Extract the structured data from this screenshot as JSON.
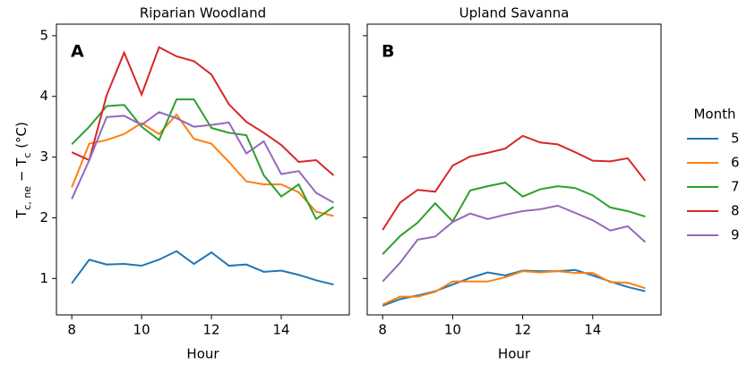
{
  "chart_data": [
    {
      "type": "line",
      "title": "Riparian Woodland",
      "annotation": "A",
      "xlabel": "Hour",
      "ylabel": [
        "T",
        "c, ne",
        " − T",
        "c",
        " (°C)"
      ],
      "legend_title": "Month",
      "legend": "outside-right",
      "x": [
        8,
        8.5,
        9,
        9.5,
        10,
        10.5,
        11,
        11.5,
        12,
        12.5,
        13,
        13.5,
        14,
        14.5,
        15,
        15.5
      ],
      "xlim": [
        7.56,
        15.95
      ],
      "xticks": [
        8,
        10,
        12,
        14
      ],
      "ylim": [
        0.4,
        5.19
      ],
      "yticks": [
        1,
        2,
        3,
        4,
        5
      ],
      "series": [
        {
          "name": "5",
          "color": "#1f77b4",
          "values": [
            0.92,
            1.31,
            1.23,
            1.24,
            1.21,
            1.31,
            1.45,
            1.24,
            1.43,
            1.21,
            1.23,
            1.11,
            1.13,
            1.06,
            0.97,
            0.9
          ]
        },
        {
          "name": "6",
          "color": "#ff7f0e",
          "values": [
            2.5,
            3.22,
            3.28,
            3.38,
            3.56,
            3.38,
            3.7,
            3.3,
            3.22,
            2.92,
            2.6,
            2.55,
            2.55,
            2.42,
            2.1,
            2.03
          ]
        },
        {
          "name": "7",
          "color": "#2ca02c",
          "values": [
            3.21,
            3.5,
            3.84,
            3.86,
            3.5,
            3.28,
            3.95,
            3.95,
            3.48,
            3.4,
            3.36,
            2.7,
            2.35,
            2.55,
            1.98,
            2.18
          ]
        },
        {
          "name": "8",
          "color": "#d62728",
          "values": [
            3.08,
            2.95,
            4.02,
            4.72,
            4.03,
            4.81,
            4.66,
            4.58,
            4.36,
            3.87,
            3.58,
            3.4,
            3.2,
            2.92,
            2.95,
            2.7
          ]
        },
        {
          "name": "9",
          "color": "#9467bd",
          "values": [
            2.31,
            2.95,
            3.66,
            3.68,
            3.53,
            3.74,
            3.64,
            3.5,
            3.53,
            3.57,
            3.06,
            3.26,
            2.72,
            2.77,
            2.41,
            2.25
          ]
        }
      ]
    },
    {
      "type": "line",
      "title": "Upland Savanna",
      "annotation": "B",
      "xlabel": "Hour",
      "sharey": true,
      "x": [
        8,
        8.5,
        9,
        9.5,
        10,
        10.5,
        11,
        11.5,
        12,
        12.5,
        13,
        13.5,
        14,
        14.5,
        15,
        15.5
      ],
      "xlim": [
        7.56,
        15.95
      ],
      "xticks": [
        8,
        10,
        12,
        14
      ],
      "ylim": [
        0.4,
        5.19
      ],
      "series": [
        {
          "name": "5",
          "color": "#1f77b4",
          "values": [
            0.55,
            0.66,
            0.72,
            0.79,
            0.9,
            1.01,
            1.1,
            1.05,
            1.13,
            1.12,
            1.12,
            1.14,
            1.05,
            0.95,
            0.86,
            0.79
          ]
        },
        {
          "name": "6",
          "color": "#ff7f0e",
          "values": [
            0.57,
            0.7,
            0.7,
            0.78,
            0.95,
            0.95,
            0.95,
            1.02,
            1.12,
            1.1,
            1.12,
            1.09,
            1.09,
            0.94,
            0.93,
            0.84
          ]
        },
        {
          "name": "7",
          "color": "#2ca02c",
          "values": [
            1.4,
            1.7,
            1.92,
            2.24,
            1.94,
            2.45,
            2.52,
            2.58,
            2.35,
            2.47,
            2.52,
            2.49,
            2.37,
            2.17,
            2.11,
            2.02
          ]
        },
        {
          "name": "8",
          "color": "#d62728",
          "values": [
            1.8,
            2.25,
            2.46,
            2.43,
            2.86,
            3.01,
            3.07,
            3.14,
            3.35,
            3.24,
            3.21,
            3.08,
            2.94,
            2.93,
            2.98,
            2.61
          ]
        },
        {
          "name": "9",
          "color": "#9467bd",
          "values": [
            0.95,
            1.26,
            1.64,
            1.69,
            1.93,
            2.07,
            1.98,
            2.05,
            2.11,
            2.14,
            2.2,
            2.08,
            1.96,
            1.79,
            1.86,
            1.6
          ]
        }
      ]
    }
  ]
}
